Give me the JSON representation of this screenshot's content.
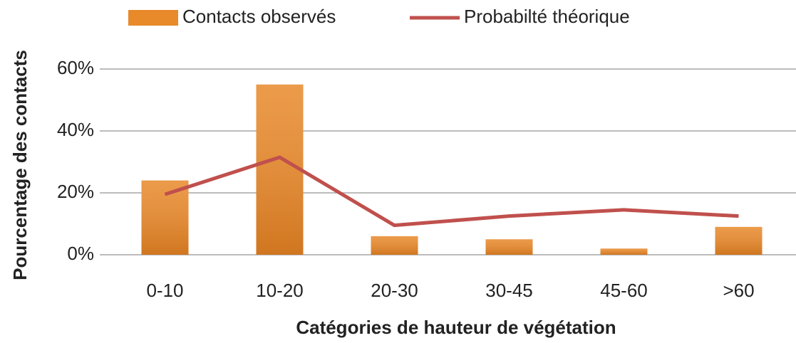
{
  "chart_data": {
    "type": "bar",
    "x_label": "Catégories de hauteur de végétation",
    "y_label": "Pourcentage des contacts",
    "categories": [
      "0-10",
      "10-20",
      "20-30",
      "30-45",
      "45-60",
      ">60"
    ],
    "series": [
      {
        "name": "Contacts observés",
        "type": "bar",
        "color": "#e8892a",
        "values": [
          24,
          55,
          6,
          5,
          2,
          9
        ]
      },
      {
        "name": "Probabilté théorique",
        "type": "line",
        "color": "#c0504d",
        "values": [
          19.5,
          31.5,
          9.5,
          12.5,
          14.5,
          12.5
        ]
      }
    ],
    "ylim": [
      0,
      60
    ],
    "yticks": [
      {
        "value": 0,
        "label": "0%"
      },
      {
        "value": 20,
        "label": "20%"
      },
      {
        "value": 40,
        "label": "40%"
      },
      {
        "value": 60,
        "label": "60%"
      }
    ],
    "grid": true,
    "legend": "top"
  }
}
